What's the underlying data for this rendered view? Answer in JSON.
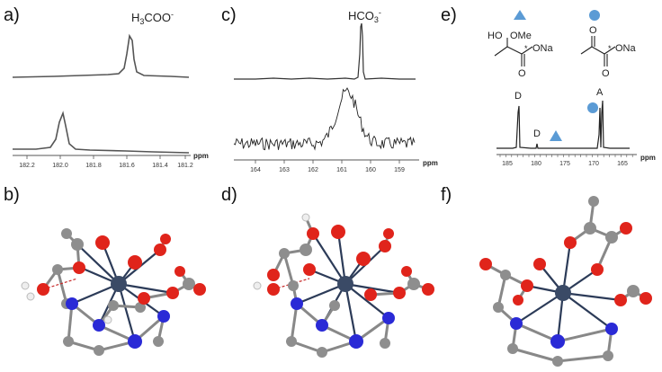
{
  "panels": {
    "a": {
      "label": "a)",
      "title_main": "H",
      "title_sub": "3",
      "title_rest": "COO",
      "title_sup": "-",
      "axis_unit": "ppm",
      "ticks": [
        "182.2",
        "182.0",
        "181.8",
        "181.6",
        "181.4",
        "181.2"
      ]
    },
    "b": {
      "label": "b)"
    },
    "c": {
      "label": "c)",
      "title_main": "HCO",
      "title_sub": "3",
      "title_sup": "-",
      "axis_unit": "ppm",
      "ticks": [
        "164",
        "163",
        "162",
        "161",
        "160",
        "159"
      ]
    },
    "d": {
      "label": "d)"
    },
    "e": {
      "label": "e)",
      "axis_unit": "ppm",
      "ticks": [
        "185",
        "180",
        "175",
        "170",
        "165"
      ],
      "peak_labels": {
        "d_tall": "D",
        "d_small": "D",
        "a": "A"
      },
      "struct_left": {
        "ho": "HO",
        "ome": "OMe",
        "ona": "ONa",
        "o": "O",
        "star": "*"
      },
      "struct_right": {
        "o_top": "O",
        "o_bot": "O",
        "ona": "ONa",
        "star": "*"
      },
      "marker_colors": {
        "triangle": "#5b9bd5",
        "circle": "#5b9bd5"
      }
    },
    "f": {
      "label": "f)"
    }
  },
  "colors": {
    "oxygen": "#e0241b",
    "carbon": "#8e8e8e",
    "nitrogen": "#2a2ad6",
    "metal": "#3a4a66",
    "hydrogen": "#f0f0f0"
  }
}
